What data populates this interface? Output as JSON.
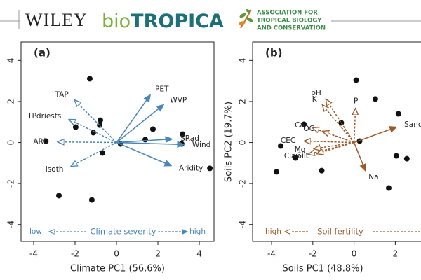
{
  "header": {
    "publisher": "WILEY",
    "journal_a": "bio",
    "journal_b": "TROPICA",
    "society": [
      "ASSOCIATION FOR",
      "TROPICAL BIOLOGY",
      "AND CONSERVATION"
    ]
  },
  "chart_data": [
    {
      "type": "biplot",
      "title": "(a)",
      "xlabel": "Climate PC1 (56.6%)",
      "color": "#4a86b8",
      "xlim": [
        -4.61,
        4.71
      ],
      "ylim": [
        -4.83,
        4.9
      ],
      "xticks": [
        -4,
        -2,
        0,
        2,
        4
      ],
      "yticks": [
        -4,
        -2,
        0,
        2,
        4
      ],
      "points": {
        "x": [
          -1.29,
          -1.97,
          -0.78,
          -1.12,
          -0.81,
          -3.42,
          0.2,
          -0.68,
          1.76,
          1.39,
          3.19,
          3.15,
          4.51,
          -2.78,
          -1.19
        ],
        "y": [
          3.11,
          0.75,
          1.09,
          0.48,
          0.85,
          0.07,
          -0.07,
          -0.51,
          0.65,
          0.14,
          0.41,
          -0.07,
          -1.26,
          -2.59,
          -2.8
        ]
      },
      "loadings": [
        {
          "name": "PET",
          "x": 1.63,
          "y": 2.32,
          "style": "solid"
        },
        {
          "name": "WVP",
          "x": 2.27,
          "y": 1.84,
          "style": "solid"
        },
        {
          "name": "SRad",
          "x": 2.68,
          "y": 0.17,
          "style": "solid"
        },
        {
          "name": "Wind",
          "x": 3.25,
          "y": -0.1,
          "style": "solid"
        },
        {
          "name": "Aridity",
          "x": 2.64,
          "y": -1.13,
          "style": "solid"
        },
        {
          "name": "TAP",
          "x": -2.03,
          "y": 2.08,
          "style": "dashed"
        },
        {
          "name": "TPdriests",
          "x": -2.3,
          "y": 1.13,
          "style": "dashed"
        },
        {
          "name": "ARD",
          "x": -2.85,
          "y": 0.03,
          "style": "dashed"
        },
        {
          "name": "Isoth",
          "x": -2.2,
          "y": -1.16,
          "style": "dashed"
        }
      ],
      "annotation": {
        "start": "low",
        "label": "Climate severity",
        "end": "high"
      }
    },
    {
      "type": "biplot",
      "title": "(b)",
      "xlabel": "Soils PC1 (48.8%)",
      "ylabel": "Soils PC2 (19.7%)",
      "color": "#9c5a2a",
      "xlim": [
        -4.92,
        3.28
      ],
      "ylim": [
        -4.83,
        4.9
      ],
      "xticks": [
        -4,
        -2,
        0,
        2
      ],
      "yticks": [
        -4,
        -2,
        0,
        2,
        4
      ],
      "points": {
        "x": [
          0.1,
          1.03,
          2.15,
          -2.43,
          -0.62,
          -3.56,
          0.27,
          -2.84,
          -1.57,
          -3.76,
          2.05,
          2.56,
          1.68
        ],
        "y": [
          3.04,
          2.12,
          1.4,
          0.89,
          0.96,
          -0.17,
          0.07,
          -0.75,
          -1.37,
          -1.43,
          -0.65,
          -0.79,
          -2.22
        ]
      },
      "loadings": [
        {
          "name": "Sand",
          "x": 2.05,
          "y": 0.75,
          "style": "solid"
        },
        {
          "name": "Na",
          "x": 0.55,
          "y": -1.37,
          "style": "solid"
        },
        {
          "name": "P",
          "x": 0.07,
          "y": 1.67,
          "style": "dashed"
        },
        {
          "name": "pH",
          "x": -1.37,
          "y": 2.12,
          "style": "dashed"
        },
        {
          "name": "K",
          "x": -1.54,
          "y": 1.84,
          "style": "dashed"
        },
        {
          "name": "Ca",
          "x": -2.02,
          "y": 0.72,
          "style": "dashed"
        },
        {
          "name": "OC",
          "x": -1.54,
          "y": 0.55,
          "style": "dashed"
        },
        {
          "name": "CEC",
          "x": -2.43,
          "y": 0.07,
          "style": "dashed"
        },
        {
          "name": "Mg",
          "x": -1.95,
          "y": -0.31,
          "style": "dashed"
        },
        {
          "name": "Clay",
          "x": -2.22,
          "y": -0.58,
          "style": "dashed"
        },
        {
          "name": "Silt",
          "x": -1.81,
          "y": -0.55,
          "style": "dashed"
        }
      ],
      "annotation": {
        "start": "high",
        "label": "Soil fertility"
      }
    }
  ]
}
